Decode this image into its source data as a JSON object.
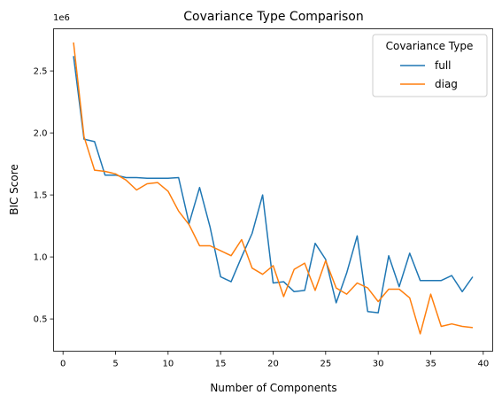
{
  "chart_data": {
    "type": "line",
    "title": "Covariance Type Comparison",
    "xlabel": "Number of Components",
    "ylabel": "BIC Score",
    "offset_label": "1e6",
    "xlim": [
      -0.9,
      40.9
    ],
    "ylim": [
      0.24,
      2.84
    ],
    "xticks": [
      0,
      5,
      10,
      15,
      20,
      25,
      30,
      35,
      40
    ],
    "yticks": [
      0.5,
      1.0,
      1.5,
      2.0,
      2.5
    ],
    "ytick_labels": [
      "0.5",
      "1.0",
      "1.5",
      "2.0",
      "2.5"
    ],
    "legend": {
      "title": "Covariance Type",
      "position": "top-right"
    },
    "x": [
      1,
      2,
      3,
      4,
      5,
      6,
      7,
      8,
      9,
      10,
      11,
      12,
      13,
      14,
      15,
      16,
      17,
      18,
      19,
      20,
      21,
      22,
      23,
      24,
      25,
      26,
      27,
      28,
      29,
      30,
      31,
      32,
      33,
      34,
      35,
      36,
      37,
      38,
      39
    ],
    "series": [
      {
        "name": "full",
        "color": "#1f77b4",
        "values": [
          2.62,
          1.95,
          1.93,
          1.66,
          1.66,
          1.64,
          1.64,
          1.635,
          1.635,
          1.635,
          1.64,
          1.27,
          1.56,
          1.24,
          0.84,
          0.8,
          1.0,
          1.19,
          1.5,
          0.79,
          0.8,
          0.72,
          0.73,
          1.11,
          0.98,
          0.63,
          0.87,
          1.17,
          0.56,
          0.55,
          1.01,
          0.76,
          1.03,
          0.81,
          0.81,
          0.81,
          0.85,
          0.72,
          0.84
        ]
      },
      {
        "name": "diag",
        "color": "#ff7f0e",
        "values": [
          2.73,
          1.97,
          1.7,
          1.69,
          1.67,
          1.62,
          1.54,
          1.59,
          1.6,
          1.53,
          1.37,
          1.26,
          1.09,
          1.09,
          1.05,
          1.01,
          1.14,
          0.91,
          0.86,
          0.93,
          0.68,
          0.9,
          0.95,
          0.73,
          0.97,
          0.75,
          0.7,
          0.79,
          0.75,
          0.64,
          0.74,
          0.74,
          0.67,
          0.38,
          0.7,
          0.44,
          0.46,
          0.44,
          0.43
        ]
      }
    ]
  }
}
